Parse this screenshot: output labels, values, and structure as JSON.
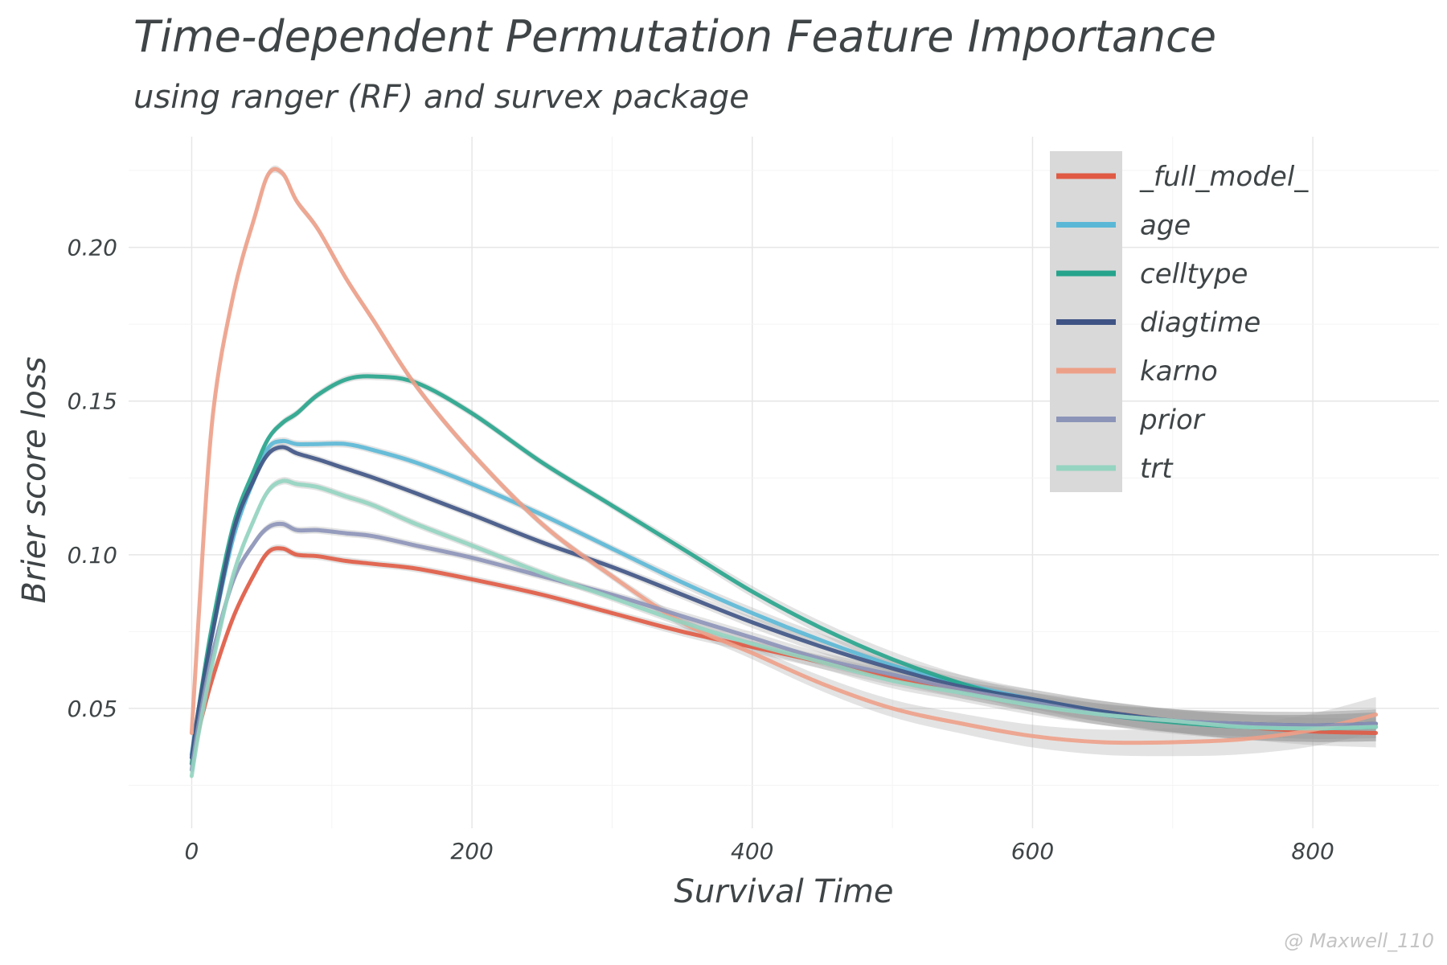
{
  "chart_data": {
    "type": "line",
    "title": "Time-dependent Permutation Feature Importance",
    "subtitle": "using ranger (RF) and survex package",
    "xlabel": "Survival Time",
    "ylabel": "Brier score loss",
    "xlim": [
      -45,
      890
    ],
    "ylim": [
      0.011,
      0.236
    ],
    "xticks": [
      0,
      200,
      400,
      600,
      800
    ],
    "yticks": [
      0.05,
      0.1,
      0.15,
      0.2
    ],
    "ytick_labels": [
      "0.05",
      "0.10",
      "0.15",
      "0.20"
    ],
    "grid": true,
    "legend_position": "top-right",
    "watermark": "@ Maxwell_110",
    "x": [
      0,
      5,
      15,
      30,
      45,
      55,
      65,
      75,
      90,
      110,
      130,
      160,
      200,
      250,
      300,
      350,
      400,
      450,
      500,
      550,
      600,
      650,
      700,
      750,
      800,
      845
    ],
    "series": [
      {
        "name": "_full_model_",
        "color": "#e05a44",
        "values": [
          0.032,
          0.043,
          0.06,
          0.08,
          0.094,
          0.101,
          0.102,
          0.1,
          0.0995,
          0.098,
          0.097,
          0.0955,
          0.092,
          0.087,
          0.081,
          0.075,
          0.07,
          0.065,
          0.06,
          0.056,
          0.052,
          0.049,
          0.046,
          0.044,
          0.0425,
          0.042
        ]
      },
      {
        "name": "age",
        "color": "#5ab8d6",
        "values": [
          0.035,
          0.05,
          0.075,
          0.106,
          0.125,
          0.135,
          0.137,
          0.136,
          0.136,
          0.136,
          0.134,
          0.13,
          0.123,
          0.113,
          0.102,
          0.091,
          0.081,
          0.072,
          0.064,
          0.058,
          0.053,
          0.049,
          0.046,
          0.044,
          0.0435,
          0.044
        ]
      },
      {
        "name": "celltype",
        "color": "#26a48c",
        "values": [
          0.032,
          0.05,
          0.078,
          0.11,
          0.128,
          0.138,
          0.143,
          0.146,
          0.152,
          0.157,
          0.158,
          0.156,
          0.146,
          0.13,
          0.116,
          0.102,
          0.088,
          0.076,
          0.066,
          0.058,
          0.052,
          0.048,
          0.0455,
          0.044,
          0.0435,
          0.044
        ]
      },
      {
        "name": "diagtime",
        "color": "#3f5485",
        "values": [
          0.034,
          0.05,
          0.075,
          0.108,
          0.125,
          0.133,
          0.135,
          0.133,
          0.131,
          0.128,
          0.125,
          0.12,
          0.113,
          0.104,
          0.096,
          0.087,
          0.078,
          0.07,
          0.063,
          0.057,
          0.053,
          0.049,
          0.046,
          0.045,
          0.0445,
          0.045
        ]
      },
      {
        "name": "karno",
        "color": "#eda088",
        "values": [
          0.042,
          0.08,
          0.145,
          0.185,
          0.21,
          0.224,
          0.224,
          0.215,
          0.206,
          0.19,
          0.176,
          0.155,
          0.133,
          0.11,
          0.093,
          0.078,
          0.068,
          0.058,
          0.05,
          0.045,
          0.041,
          0.039,
          0.039,
          0.04,
          0.043,
          0.048
        ]
      },
      {
        "name": "prior",
        "color": "#8c94b8",
        "values": [
          0.03,
          0.045,
          0.068,
          0.092,
          0.104,
          0.109,
          0.11,
          0.108,
          0.108,
          0.107,
          0.106,
          0.103,
          0.099,
          0.093,
          0.087,
          0.08,
          0.073,
          0.066,
          0.061,
          0.056,
          0.052,
          0.048,
          0.046,
          0.045,
          0.0445,
          0.045
        ]
      },
      {
        "name": "trt",
        "color": "#94d4c0",
        "values": [
          0.028,
          0.042,
          0.065,
          0.094,
          0.112,
          0.121,
          0.124,
          0.123,
          0.122,
          0.119,
          0.116,
          0.11,
          0.103,
          0.094,
          0.086,
          0.078,
          0.071,
          0.065,
          0.059,
          0.055,
          0.051,
          0.048,
          0.046,
          0.044,
          0.0435,
          0.044
        ]
      }
    ]
  }
}
